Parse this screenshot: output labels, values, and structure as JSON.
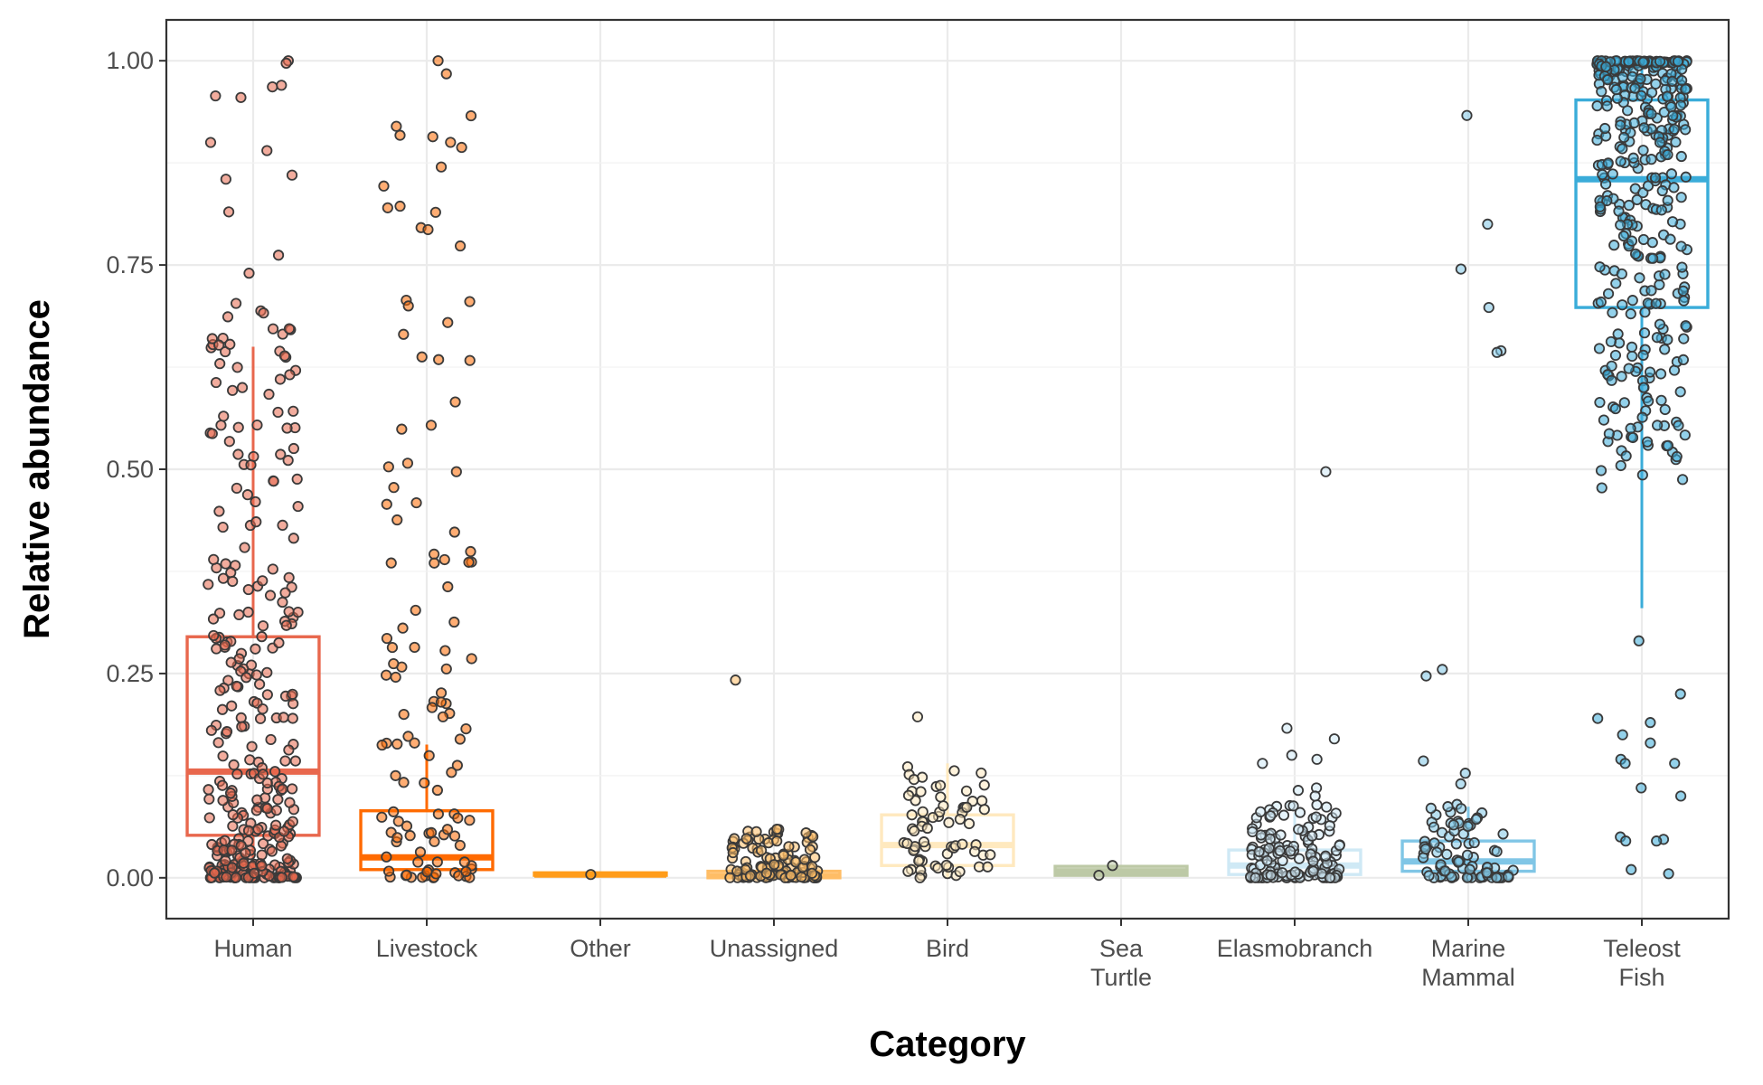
{
  "chart_data": {
    "type": "box",
    "xlabel": "Category",
    "ylabel": "Relative abundance",
    "ylim": [
      -0.05,
      1.05
    ],
    "yticks": [
      0,
      0.25,
      0.5,
      0.75,
      1.0
    ],
    "ytick_labels": [
      "0.00",
      "0.25",
      "0.50",
      "0.75",
      "1.00"
    ],
    "grid": true,
    "legend": "none",
    "categories": [
      {
        "label": [
          "Human"
        ],
        "color": "#e8674d",
        "opacity": 1.0,
        "box": {
          "lower_whisker": 0.0,
          "q1": 0.052,
          "median": 0.13,
          "q3": 0.295,
          "upper_whisker": 0.65
        },
        "points": {
          "n": 320,
          "min": 0.0,
          "max": 1.0,
          "shape": "skew",
          "highlights": [
            1.0,
            0.997,
            0.97,
            0.968,
            0.957,
            0.955,
            0.9,
            0.89,
            0.86,
            0.855,
            0.815,
            0.762,
            0.74,
            0.703,
            0.672,
            0.652
          ]
        }
      },
      {
        "label": [
          "Livestock"
        ],
        "color": "#ff6a00",
        "opacity": 1.0,
        "box": {
          "lower_whisker": 0.0,
          "q1": 0.01,
          "median": 0.025,
          "q3": 0.082,
          "upper_whisker": 0.163
        },
        "points": {
          "n": 110,
          "min": 0.0,
          "max": 1.0,
          "shape": "low",
          "highlights": [
            1.0,
            0.503,
            0.438,
            0.293,
            0.278,
            0.262,
            0.248,
            0.215,
            0.2,
            0.197,
            0.165
          ]
        }
      },
      {
        "label": [
          "Other"
        ],
        "color": "#ff9c1a",
        "opacity": 1.0,
        "box": {
          "lower_whisker": 0.003,
          "q1": 0.003,
          "median": 0.004,
          "q3": 0.006,
          "upper_whisker": 0.006
        },
        "points": {
          "n": 1,
          "min": 0.004,
          "max": 0.004,
          "shape": "single",
          "highlights": []
        }
      },
      {
        "label": [
          "Unassigned"
        ],
        "color": "#ffbd66",
        "opacity": 1.0,
        "box": {
          "lower_whisker": 0.0,
          "q1": 0.0,
          "median": 0.002,
          "q3": 0.008,
          "upper_whisker": 0.02
        },
        "points": {
          "n": 110,
          "min": 0.0,
          "max": 0.06,
          "shape": "low",
          "highlights": [
            0.242,
            0.055,
            0.048,
            0.045
          ]
        }
      },
      {
        "label": [
          "Bird"
        ],
        "color": "#ffe9bf",
        "opacity": 1.0,
        "box": {
          "lower_whisker": 0.0,
          "q1": 0.015,
          "median": 0.04,
          "q3": 0.077,
          "upper_whisker": 0.14
        },
        "points": {
          "n": 70,
          "min": 0.0,
          "max": 0.14,
          "shape": "uniform",
          "highlights": [
            0.197
          ]
        }
      },
      {
        "label": [
          "Sea",
          "Turtle"
        ],
        "color": "#bdc9a6",
        "opacity": 1.0,
        "box": {
          "lower_whisker": 0.003,
          "q1": 0.003,
          "median": 0.008,
          "q3": 0.014,
          "upper_whisker": 0.014
        },
        "points": {
          "n": 2,
          "min": 0.003,
          "max": 0.015,
          "shape": "pair",
          "highlights": [
            0.015,
            0.003
          ]
        }
      },
      {
        "label": [
          "Elasmobranch"
        ],
        "color": "#cfe9f5",
        "opacity": 1.0,
        "box": {
          "lower_whisker": 0.0,
          "q1": 0.004,
          "median": 0.015,
          "q3": 0.034,
          "upper_whisker": 0.08
        },
        "points": {
          "n": 140,
          "min": 0.0,
          "max": 0.09,
          "shape": "low",
          "highlights": [
            0.497,
            0.183,
            0.17,
            0.15,
            0.145,
            0.14,
            0.11,
            0.107,
            0.1
          ]
        }
      },
      {
        "label": [
          "Marine",
          "Mammal"
        ],
        "color": "#80c6e6",
        "opacity": 1.0,
        "box": {
          "lower_whisker": 0.0,
          "q1": 0.008,
          "median": 0.02,
          "q3": 0.045,
          "upper_whisker": 0.087
        },
        "points": {
          "n": 85,
          "min": 0.0,
          "max": 0.09,
          "shape": "low",
          "highlights": [
            0.933,
            0.8,
            0.745,
            0.698,
            0.645,
            0.643,
            0.255,
            0.247,
            0.143,
            0.128,
            0.115
          ]
        }
      },
      {
        "label": [
          "Teleost",
          "Fish"
        ],
        "color": "#3aacd9",
        "opacity": 1.0,
        "box": {
          "lower_whisker": 0.33,
          "q1": 0.698,
          "median": 0.855,
          "q3": 0.952,
          "upper_whisker": 1.0
        },
        "points": {
          "n": 360,
          "min": 0.3,
          "max": 1.0,
          "shape": "high",
          "highlights": [
            0.29,
            0.225,
            0.195,
            0.19,
            0.175,
            0.165,
            0.145,
            0.14,
            0.14,
            0.11,
            0.1,
            0.05,
            0.047,
            0.045,
            0.045,
            0.01,
            0.005
          ]
        }
      }
    ]
  }
}
